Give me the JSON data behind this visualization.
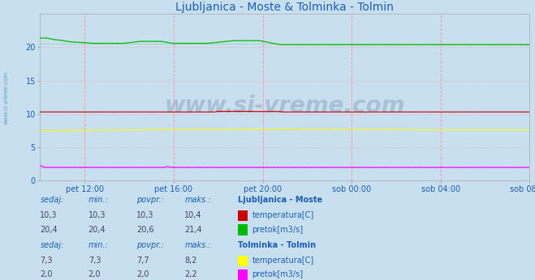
{
  "title": "Ljubljanica - Moste & Tolminka - Tolmin",
  "title_color": "#1a5fb4",
  "bg_color": "#c8dff0",
  "plot_bg_color": "#c8dff0",
  "ylim": [
    0,
    25
  ],
  "yticks": [
    0,
    5,
    10,
    15,
    20
  ],
  "x_tick_labels": [
    "pet 12:00",
    "pet 16:00",
    "pet 20:00",
    "sob 00:00",
    "sob 04:00",
    "sob 08:00"
  ],
  "total_hours": 22.0,
  "tick_hours": [
    2,
    6,
    10,
    14,
    18,
    22
  ],
  "watermark": "www.si-vreme.com",
  "watermark_color": "#1a3a6a",
  "sidebar_text": "www.si-vreme.com",
  "lj_temp_color": "#cc0000",
  "lj_pretok_color": "#00bb00",
  "tol_temp_color": "#ffff00",
  "tol_pretok_color": "#ff00ff",
  "legend_label_color": "#1a5fb4",
  "lj_sedaj": "10,3",
  "lj_min": "10,3",
  "lj_povpr": "10,3",
  "lj_maks": "10,4",
  "lj_pretok_sedaj": "20,4",
  "lj_pretok_min": "20,4",
  "lj_pretok_povpr": "20,6",
  "lj_pretok_maks": "21,4",
  "tol_temp_sedaj": "7,3",
  "tol_temp_min": "7,3",
  "tol_temp_povpr": "7,7",
  "tol_temp_maks": "8,2",
  "tol_pretok_sedaj": "2,0",
  "tol_pretok_min": "2,0",
  "tol_pretok_povpr": "2,0",
  "tol_pretok_maks": "2,2"
}
